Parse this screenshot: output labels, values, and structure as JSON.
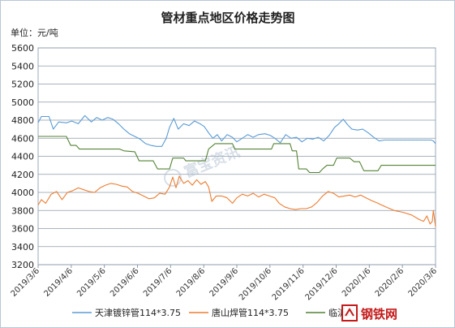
{
  "chart_data": {
    "type": "line",
    "title": "管材重点地区价格走势图",
    "unit_label": "单位：元/吨",
    "ylim": [
      3200,
      5600
    ],
    "y_ticks": [
      3200,
      3400,
      3600,
      3800,
      4000,
      4200,
      4400,
      4600,
      4800,
      5000,
      5200,
      5400,
      5600
    ],
    "x_ticks": [
      "2019/3/6",
      "2019/4/6",
      "2019/5/6",
      "2019/6/6",
      "2019/7/6",
      "2019/8/6",
      "2019/9/6",
      "2019/10/6",
      "2019/11/6",
      "2019/12/6",
      "2020/1/6",
      "2020/2/6",
      "2020/3/6"
    ],
    "grid": "horizontal",
    "legend": "bottom",
    "series": [
      {
        "name": "天津镀锌管114*3.75",
        "color": "#5b9bd5",
        "points": [
          [
            "2019-03-06",
            4770
          ],
          [
            "2019-03-09",
            4840
          ],
          [
            "2019-03-16",
            4840
          ],
          [
            "2019-03-20",
            4700
          ],
          [
            "2019-03-25",
            4780
          ],
          [
            "2019-04-01",
            4770
          ],
          [
            "2019-04-06",
            4790
          ],
          [
            "2019-04-12",
            4760
          ],
          [
            "2019-04-18",
            4850
          ],
          [
            "2019-04-24",
            4780
          ],
          [
            "2019-04-29",
            4830
          ],
          [
            "2019-05-04",
            4800
          ],
          [
            "2019-05-09",
            4830
          ],
          [
            "2019-05-14",
            4810
          ],
          [
            "2019-05-19",
            4760
          ],
          [
            "2019-05-24",
            4700
          ],
          [
            "2019-05-29",
            4650
          ],
          [
            "2019-06-03",
            4620
          ],
          [
            "2019-06-08",
            4590
          ],
          [
            "2019-06-13",
            4540
          ],
          [
            "2019-06-18",
            4520
          ],
          [
            "2019-06-23",
            4510
          ],
          [
            "2019-06-28",
            4510
          ],
          [
            "2019-07-02",
            4600
          ],
          [
            "2019-07-05",
            4720
          ],
          [
            "2019-07-09",
            4820
          ],
          [
            "2019-07-13",
            4700
          ],
          [
            "2019-07-18",
            4760
          ],
          [
            "2019-07-23",
            4740
          ],
          [
            "2019-07-28",
            4790
          ],
          [
            "2019-08-02",
            4760
          ],
          [
            "2019-08-06",
            4730
          ],
          [
            "2019-08-10",
            4660
          ],
          [
            "2019-08-14",
            4600
          ],
          [
            "2019-08-18",
            4640
          ],
          [
            "2019-08-22",
            4570
          ],
          [
            "2019-08-27",
            4640
          ],
          [
            "2019-09-01",
            4610
          ],
          [
            "2019-09-05",
            4560
          ],
          [
            "2019-09-10",
            4600
          ],
          [
            "2019-09-15",
            4640
          ],
          [
            "2019-09-20",
            4610
          ],
          [
            "2019-09-25",
            4640
          ],
          [
            "2019-10-01",
            4650
          ],
          [
            "2019-10-06",
            4630
          ],
          [
            "2019-10-10",
            4600
          ],
          [
            "2019-10-15",
            4550
          ],
          [
            "2019-10-20",
            4640
          ],
          [
            "2019-10-25",
            4600
          ],
          [
            "2019-10-30",
            4610
          ],
          [
            "2019-11-04",
            4560
          ],
          [
            "2019-11-09",
            4600
          ],
          [
            "2019-11-14",
            4590
          ],
          [
            "2019-11-19",
            4610
          ],
          [
            "2019-11-24",
            4570
          ],
          [
            "2019-11-29",
            4630
          ],
          [
            "2019-12-04",
            4720
          ],
          [
            "2019-12-08",
            4760
          ],
          [
            "2019-12-12",
            4810
          ],
          [
            "2019-12-16",
            4750
          ],
          [
            "2019-12-20",
            4700
          ],
          [
            "2019-12-25",
            4690
          ],
          [
            "2019-12-30",
            4700
          ],
          [
            "2020-01-04",
            4660
          ],
          [
            "2020-01-09",
            4610
          ],
          [
            "2020-01-14",
            4570
          ],
          [
            "2020-01-19",
            4580
          ],
          [
            "2020-01-25",
            4580
          ],
          [
            "2020-02-05",
            4580
          ],
          [
            "2020-02-15",
            4580
          ],
          [
            "2020-02-25",
            4580
          ],
          [
            "2020-03-02",
            4580
          ],
          [
            "2020-03-04",
            4570
          ],
          [
            "2020-03-06",
            4540
          ]
        ]
      },
      {
        "name": "唐山焊管114*3.75",
        "color": "#ed7d31",
        "points": [
          [
            "2019-03-06",
            3860
          ],
          [
            "2019-03-09",
            3920
          ],
          [
            "2019-03-13",
            3880
          ],
          [
            "2019-03-18",
            3980
          ],
          [
            "2019-03-23",
            4010
          ],
          [
            "2019-03-28",
            3920
          ],
          [
            "2019-04-02",
            4000
          ],
          [
            "2019-04-07",
            4020
          ],
          [
            "2019-04-12",
            4050
          ],
          [
            "2019-04-17",
            4030
          ],
          [
            "2019-04-22",
            4010
          ],
          [
            "2019-04-27",
            4000
          ],
          [
            "2019-05-02",
            4050
          ],
          [
            "2019-05-07",
            4080
          ],
          [
            "2019-05-12",
            4100
          ],
          [
            "2019-05-17",
            4090
          ],
          [
            "2019-05-22",
            4070
          ],
          [
            "2019-05-27",
            4060
          ],
          [
            "2019-06-01",
            4010
          ],
          [
            "2019-06-06",
            3990
          ],
          [
            "2019-06-11",
            3960
          ],
          [
            "2019-06-16",
            3930
          ],
          [
            "2019-06-21",
            3940
          ],
          [
            "2019-06-26",
            3990
          ],
          [
            "2019-07-01",
            3980
          ],
          [
            "2019-07-05",
            4060
          ],
          [
            "2019-07-08",
            4170
          ],
          [
            "2019-07-11",
            4050
          ],
          [
            "2019-07-14",
            4180
          ],
          [
            "2019-07-18",
            4100
          ],
          [
            "2019-07-22",
            4130
          ],
          [
            "2019-07-26",
            4080
          ],
          [
            "2019-07-30",
            4140
          ],
          [
            "2019-08-03",
            4090
          ],
          [
            "2019-08-07",
            4120
          ],
          [
            "2019-08-10",
            4060
          ],
          [
            "2019-08-13",
            3900
          ],
          [
            "2019-08-17",
            3960
          ],
          [
            "2019-08-22",
            3960
          ],
          [
            "2019-08-27",
            3940
          ],
          [
            "2019-09-01",
            3880
          ],
          [
            "2019-09-05",
            3940
          ],
          [
            "2019-09-10",
            3980
          ],
          [
            "2019-09-15",
            3960
          ],
          [
            "2019-09-20",
            3990
          ],
          [
            "2019-09-25",
            3950
          ],
          [
            "2019-09-30",
            3980
          ],
          [
            "2019-10-05",
            3960
          ],
          [
            "2019-10-10",
            3940
          ],
          [
            "2019-10-14",
            3880
          ],
          [
            "2019-10-19",
            3840
          ],
          [
            "2019-10-24",
            3820
          ],
          [
            "2019-10-29",
            3810
          ],
          [
            "2019-11-03",
            3820
          ],
          [
            "2019-11-08",
            3820
          ],
          [
            "2019-11-13",
            3840
          ],
          [
            "2019-11-18",
            3890
          ],
          [
            "2019-11-23",
            3960
          ],
          [
            "2019-11-28",
            4010
          ],
          [
            "2019-12-03",
            3990
          ],
          [
            "2019-12-08",
            3950
          ],
          [
            "2019-12-13",
            3960
          ],
          [
            "2019-12-18",
            3970
          ],
          [
            "2019-12-23",
            3950
          ],
          [
            "2019-12-28",
            3970
          ],
          [
            "2020-01-02",
            3940
          ],
          [
            "2020-01-07",
            3910
          ],
          [
            "2020-01-13",
            3880
          ],
          [
            "2020-01-20",
            3840
          ],
          [
            "2020-01-28",
            3800
          ],
          [
            "2020-02-05",
            3780
          ],
          [
            "2020-02-13",
            3750
          ],
          [
            "2020-02-20",
            3700
          ],
          [
            "2020-02-24",
            3680
          ],
          [
            "2020-02-27",
            3740
          ],
          [
            "2020-03-01",
            3650
          ],
          [
            "2020-03-03",
            3680
          ],
          [
            "2020-03-04",
            3800
          ],
          [
            "2020-03-06",
            3620
          ]
        ]
      },
      {
        "name": "临沂焊管",
        "color": "#548235",
        "points": [
          [
            "2019-03-06",
            4620
          ],
          [
            "2019-04-01",
            4620
          ],
          [
            "2019-04-05",
            4520
          ],
          [
            "2019-04-10",
            4520
          ],
          [
            "2019-04-13",
            4480
          ],
          [
            "2019-05-20",
            4480
          ],
          [
            "2019-05-24",
            4460
          ],
          [
            "2019-06-03",
            4450
          ],
          [
            "2019-06-07",
            4350
          ],
          [
            "2019-06-20",
            4350
          ],
          [
            "2019-06-24",
            4260
          ],
          [
            "2019-07-05",
            4260
          ],
          [
            "2019-07-08",
            4380
          ],
          [
            "2019-07-18",
            4380
          ],
          [
            "2019-07-20",
            4350
          ],
          [
            "2019-08-07",
            4350
          ],
          [
            "2019-08-10",
            4480
          ],
          [
            "2019-08-16",
            4540
          ],
          [
            "2019-09-01",
            4540
          ],
          [
            "2019-09-03",
            4480
          ],
          [
            "2019-10-07",
            4480
          ],
          [
            "2019-10-09",
            4540
          ],
          [
            "2019-10-24",
            4540
          ],
          [
            "2019-10-26",
            4460
          ],
          [
            "2019-10-30",
            4460
          ],
          [
            "2019-11-01",
            4260
          ],
          [
            "2019-11-08",
            4260
          ],
          [
            "2019-11-11",
            4220
          ],
          [
            "2019-11-20",
            4220
          ],
          [
            "2019-11-23",
            4260
          ],
          [
            "2019-11-27",
            4300
          ],
          [
            "2019-12-03",
            4300
          ],
          [
            "2019-12-06",
            4380
          ],
          [
            "2019-12-18",
            4380
          ],
          [
            "2019-12-22",
            4340
          ],
          [
            "2019-12-27",
            4340
          ],
          [
            "2019-12-31",
            4240
          ],
          [
            "2020-01-13",
            4240
          ],
          [
            "2020-01-16",
            4300
          ],
          [
            "2020-03-06",
            4300
          ]
        ]
      }
    ]
  },
  "watermark_text": "富宝资讯",
  "logo_text": "钢铁网"
}
